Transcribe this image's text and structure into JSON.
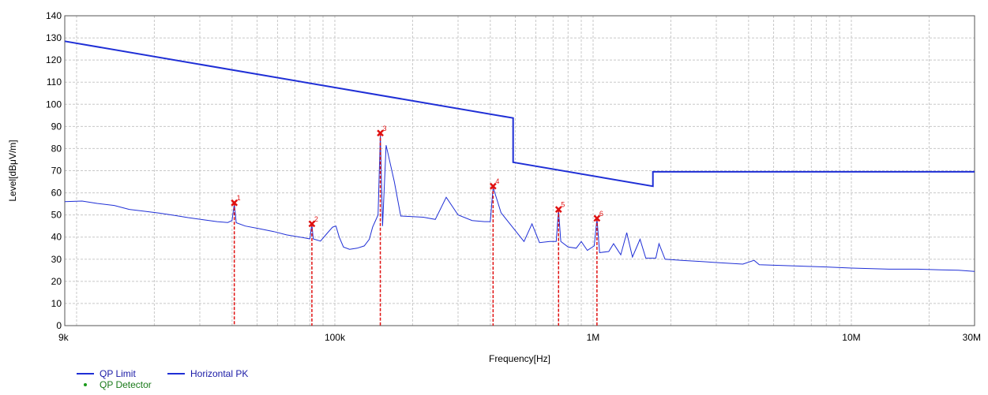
{
  "chart_data": {
    "type": "line",
    "xlabel": "Frequency[Hz]",
    "ylabel": "Level[dBμV/m]",
    "x_scale": "log",
    "xlim": [
      9000,
      30000000
    ],
    "ylim": [
      0,
      140
    ],
    "x_ticks": [
      {
        "value": 9000,
        "label": "9k"
      },
      {
        "value": 100000,
        "label": "100k"
      },
      {
        "value": 1000000,
        "label": "1M"
      },
      {
        "value": 10000000,
        "label": "10M"
      },
      {
        "value": 30000000,
        "label": "30M"
      }
    ],
    "y_ticks": [
      0,
      10,
      20,
      30,
      40,
      50,
      60,
      70,
      80,
      90,
      100,
      110,
      120,
      130,
      140
    ],
    "grid": true,
    "legend_position": "bottom-left",
    "colors": {
      "limit": "#1f2fd6",
      "pk": "#1f2fd6",
      "marker": "#e01010",
      "detector": "#1a9a1a",
      "grid": "#c8c8c8"
    },
    "series": [
      {
        "name": "QP Limit",
        "points": [
          [
            9000,
            128.5
          ],
          [
            490000,
            93.8
          ],
          [
            490000,
            73.8
          ],
          [
            1705000,
            63
          ],
          [
            1705000,
            69.5
          ],
          [
            30000000,
            69.5
          ]
        ]
      },
      {
        "name": "Horizontal PK",
        "points": [
          [
            9000,
            56
          ],
          [
            10500,
            56.3
          ],
          [
            12000,
            55.2
          ],
          [
            14000,
            54.3
          ],
          [
            16000,
            52.5
          ],
          [
            18000,
            51.8
          ],
          [
            21000,
            50.8
          ],
          [
            24000,
            49.8
          ],
          [
            27000,
            48.8
          ],
          [
            31000,
            47.8
          ],
          [
            35000,
            47
          ],
          [
            38500,
            46.6
          ],
          [
            40000,
            47.5
          ],
          [
            40800,
            55
          ],
          [
            41500,
            46.5
          ],
          [
            45000,
            45
          ],
          [
            50000,
            44
          ],
          [
            58000,
            42.5
          ],
          [
            65000,
            41
          ],
          [
            75000,
            39.8
          ],
          [
            80000,
            39.2
          ],
          [
            81500,
            46
          ],
          [
            82500,
            39.2
          ],
          [
            88000,
            38.2
          ],
          [
            93000,
            41.5
          ],
          [
            98000,
            44.5
          ],
          [
            101000,
            45
          ],
          [
            104000,
            40
          ],
          [
            108000,
            35.5
          ],
          [
            114000,
            34.5
          ],
          [
            122000,
            35
          ],
          [
            130000,
            36
          ],
          [
            136000,
            39
          ],
          [
            140000,
            44.5
          ],
          [
            147000,
            50
          ],
          [
            150000,
            86.5
          ],
          [
            153000,
            45
          ],
          [
            158000,
            81.5
          ],
          [
            170000,
            65
          ],
          [
            180000,
            49.5
          ],
          [
            220000,
            49
          ],
          [
            245000,
            48
          ],
          [
            270000,
            58
          ],
          [
            300000,
            50
          ],
          [
            340000,
            47.5
          ],
          [
            380000,
            47
          ],
          [
            400000,
            47
          ],
          [
            410000,
            62.5
          ],
          [
            440000,
            51
          ],
          [
            540000,
            38
          ],
          [
            580000,
            46
          ],
          [
            620000,
            37.5
          ],
          [
            680000,
            38
          ],
          [
            720000,
            38
          ],
          [
            735000,
            52.5
          ],
          [
            750000,
            38
          ],
          [
            800000,
            35.5
          ],
          [
            860000,
            35
          ],
          [
            900000,
            38
          ],
          [
            950000,
            34
          ],
          [
            1010000,
            36
          ],
          [
            1035000,
            48.5
          ],
          [
            1060000,
            33
          ],
          [
            1150000,
            33.5
          ],
          [
            1200000,
            37
          ],
          [
            1280000,
            32
          ],
          [
            1350000,
            42
          ],
          [
            1420000,
            31
          ],
          [
            1520000,
            39
          ],
          [
            1600000,
            30.5
          ],
          [
            1750000,
            30.5
          ],
          [
            1800000,
            37
          ],
          [
            1900000,
            30
          ],
          [
            2200000,
            29.5
          ],
          [
            2600000,
            29
          ],
          [
            3000000,
            28.5
          ],
          [
            3800000,
            27.8
          ],
          [
            4200000,
            29.5
          ],
          [
            4400000,
            27.5
          ],
          [
            6000000,
            27
          ],
          [
            8000000,
            26.5
          ],
          [
            10000000,
            26
          ],
          [
            14000000,
            25.5
          ],
          [
            18000000,
            25.5
          ],
          [
            22000000,
            25.2
          ],
          [
            26000000,
            25
          ],
          [
            30000000,
            24.5
          ]
        ]
      }
    ],
    "markers": [
      {
        "label": "1",
        "x": 40800,
        "y": 55.5
      },
      {
        "label": "2",
        "x": 81500,
        "y": 46
      },
      {
        "label": "3",
        "x": 150000,
        "y": 87
      },
      {
        "label": "4",
        "x": 410000,
        "y": 63
      },
      {
        "label": "5",
        "x": 735000,
        "y": 52.5
      },
      {
        "label": "6",
        "x": 1035000,
        "y": 48.5
      }
    ],
    "legend": [
      {
        "label": "QP Limit",
        "style": "line",
        "color": "#1f2fd6"
      },
      {
        "label": "Horizontal PK",
        "style": "line",
        "color": "#1f2fd6"
      },
      {
        "label": "QP Detector",
        "style": "dot",
        "color": "#1a9a1a"
      }
    ]
  }
}
